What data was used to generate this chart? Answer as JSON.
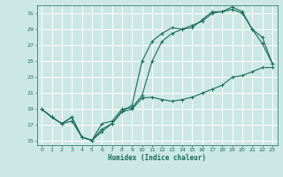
{
  "xlabel": "Humidex (Indice chaleur)",
  "bg_color": "#cce8e4",
  "line_color": "#1a6b5a",
  "grid_color": "#ffffff",
  "xlim": [
    -0.5,
    23.5
  ],
  "ylim": [
    14.5,
    32
  ],
  "xticks": [
    0,
    1,
    2,
    3,
    4,
    5,
    6,
    7,
    8,
    9,
    10,
    11,
    12,
    13,
    14,
    15,
    16,
    17,
    18,
    19,
    20,
    21,
    22,
    23
  ],
  "yticks": [
    15,
    17,
    19,
    21,
    23,
    25,
    27,
    29,
    31
  ],
  "curve1_x": [
    0,
    1,
    2,
    3,
    4,
    5,
    6,
    7,
    8,
    9,
    10,
    11,
    12,
    13,
    14,
    15,
    16,
    17,
    18,
    19,
    20,
    21,
    22,
    23
  ],
  "curve1_y": [
    19,
    18,
    17.2,
    18,
    15.5,
    15.1,
    16.2,
    17.2,
    18.7,
    19.0,
    20.4,
    20.5,
    20.2,
    20.0,
    20.2,
    20.5,
    21.0,
    21.5,
    22.0,
    23.0,
    23.2,
    23.7,
    24.2,
    24.2
  ],
  "curve2_x": [
    0,
    1,
    2,
    3,
    4,
    5,
    6,
    7,
    8,
    9,
    10,
    11,
    12,
    13,
    14,
    15,
    16,
    17,
    18,
    19,
    20,
    21,
    22,
    23
  ],
  "curve2_y": [
    19,
    18,
    17.2,
    17.5,
    15.5,
    15.1,
    16.5,
    17.2,
    18.7,
    19.5,
    25.0,
    27.5,
    28.5,
    29.2,
    29.0,
    29.2,
    30.2,
    31.2,
    31.2,
    31.8,
    31.2,
    29.0,
    28.0,
    24.7
  ],
  "curve3_x": [
    0,
    1,
    2,
    3,
    4,
    5,
    6,
    7,
    8,
    9,
    10,
    11,
    12,
    13,
    14,
    15,
    16,
    17,
    18,
    19,
    20,
    21,
    22,
    23
  ],
  "curve3_y": [
    19,
    18,
    17.2,
    18,
    15.5,
    15.1,
    17.2,
    17.5,
    19.0,
    19.2,
    20.7,
    25.0,
    27.5,
    28.5,
    29.0,
    29.5,
    30.0,
    31.0,
    31.2,
    31.5,
    31.0,
    29.0,
    27.2,
    24.7
  ]
}
